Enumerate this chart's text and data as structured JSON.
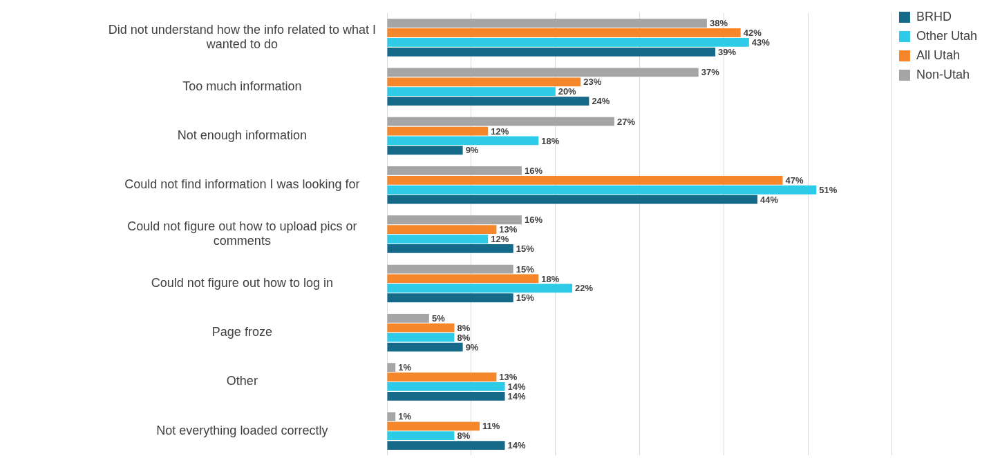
{
  "chart_data": {
    "type": "bar",
    "orientation": "horizontal",
    "categories": [
      "Did not understand how the info related to what I wanted to do",
      "Too much information",
      "Not enough information",
      "Could not find information I was looking for",
      "Could not figure out how to upload pics or comments",
      "Could not figure out how to log in",
      "Page froze",
      "Other",
      "Not everything loaded correctly"
    ],
    "series": [
      {
        "name": "BRHD",
        "color": "#156a8a",
        "values": [
          39,
          24,
          9,
          44,
          15,
          15,
          9,
          14,
          14
        ],
        "value_labels": [
          "39%",
          "24%",
          "9%",
          "44%",
          "15%",
          "15%",
          "9%",
          "14%",
          "14%"
        ]
      },
      {
        "name": "Other Utah",
        "color": "#2ecbe9",
        "values": [
          43,
          20,
          18,
          51,
          12,
          22,
          8,
          14,
          8
        ],
        "value_labels": [
          "43%",
          "20%",
          "18%",
          "51%",
          "12%",
          "22%",
          "8%",
          "14%",
          "8%"
        ]
      },
      {
        "name": "All Utah",
        "color": "#f5862a",
        "values": [
          42,
          23,
          12,
          47,
          13,
          18,
          8,
          13,
          11
        ],
        "value_labels": [
          "42%",
          "23%",
          "12%",
          "47%",
          "13%",
          "18%",
          "8%",
          "13%",
          "11%"
        ]
      },
      {
        "name": "Non-Utah",
        "color": "#a5a5a5",
        "values": [
          38,
          37,
          27,
          16,
          16,
          15,
          5,
          1,
          1
        ],
        "value_labels": [
          "38%",
          "37%",
          "27%",
          "16%",
          "16%",
          "15%",
          "5%",
          "1%",
          "1%"
        ]
      }
    ],
    "xlim": [
      0,
      60
    ],
    "xticks": [
      {
        "value": 0,
        "label": null
      },
      {
        "value": 10,
        "label": null
      },
      {
        "value": 20,
        "label": null
      },
      {
        "value": 30,
        "label": null
      },
      {
        "value": 40,
        "label": null
      },
      {
        "value": 50,
        "label": null
      },
      {
        "value": 60,
        "label": null
      }
    ],
    "grid": "x",
    "legend": "top right",
    "tick_labels": "y"
  }
}
